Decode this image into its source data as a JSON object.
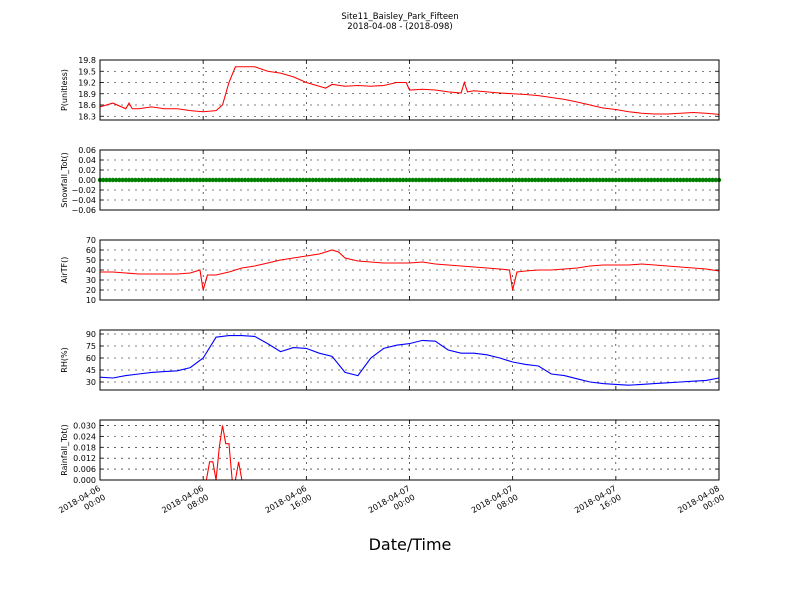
{
  "figure": {
    "title_line1": "Site11_Baisley_Park_Fifteen",
    "title_line2": "2018-04-08 - (2018-098)",
    "xlabel": "Date/Time"
  },
  "x_axis": {
    "range": [
      "2018-04-06 00:00",
      "2018-04-08 00:00"
    ],
    "ticks": [
      {
        "line1": "2018-04-06",
        "line2": "00:00",
        "at": "2018-04-06 00:00"
      },
      {
        "line1": "2018-04-06",
        "line2": "08:00",
        "at": "2018-04-06 08:00"
      },
      {
        "line1": "2018-04-06",
        "line2": "16:00",
        "at": "2018-04-06 16:00"
      },
      {
        "line1": "2018-04-07",
        "line2": "00:00",
        "at": "2018-04-07 00:00"
      },
      {
        "line1": "2018-04-07",
        "line2": "08:00",
        "at": "2018-04-07 08:00"
      },
      {
        "line1": "2018-04-07",
        "line2": "16:00",
        "at": "2018-04-07 16:00"
      },
      {
        "line1": "2018-04-08",
        "line2": "00:00",
        "at": "2018-04-08 00:00"
      }
    ]
  },
  "chart_data": [
    {
      "type": "line",
      "ylabel": "P(unitless)",
      "ylim": [
        18.2,
        19.8
      ],
      "yticks": [
        "18.3",
        "18.6",
        "18.9",
        "19.2",
        "19.5",
        "19.8"
      ],
      "grid": true,
      "series": [
        {
          "color": "#ff0000",
          "x": [
            "2018-04-06 00:00",
            "2018-04-06 01:00",
            "2018-04-06 02:00",
            "2018-04-06 02:15",
            "2018-04-06 02:30",
            "2018-04-06 03:00",
            "2018-04-06 04:00",
            "2018-04-06 05:00",
            "2018-04-06 06:00",
            "2018-04-06 07:00",
            "2018-04-06 08:00",
            "2018-04-06 09:00",
            "2018-04-06 09:30",
            "2018-04-06 10:00",
            "2018-04-06 10:30",
            "2018-04-06 11:00",
            "2018-04-06 12:00",
            "2018-04-06 13:00",
            "2018-04-06 14:00",
            "2018-04-06 15:00",
            "2018-04-06 16:00",
            "2018-04-06 17:00",
            "2018-04-06 17:30",
            "2018-04-06 18:00",
            "2018-04-06 19:00",
            "2018-04-06 20:00",
            "2018-04-06 21:00",
            "2018-04-06 22:00",
            "2018-04-06 23:00",
            "2018-04-06 23:45",
            "2018-04-07 00:00",
            "2018-04-07 01:00",
            "2018-04-07 02:00",
            "2018-04-07 03:00",
            "2018-04-07 04:00",
            "2018-04-07 04:15",
            "2018-04-07 04:30",
            "2018-04-07 05:00",
            "2018-04-07 06:00",
            "2018-04-07 07:00",
            "2018-04-07 08:00",
            "2018-04-07 09:00",
            "2018-04-07 10:00",
            "2018-04-07 11:00",
            "2018-04-07 12:00",
            "2018-04-07 13:00",
            "2018-04-07 14:00",
            "2018-04-07 15:00",
            "2018-04-07 16:00",
            "2018-04-07 17:00",
            "2018-04-07 18:00",
            "2018-04-07 19:00",
            "2018-04-07 20:00",
            "2018-04-07 21:00",
            "2018-04-07 22:00",
            "2018-04-07 23:00",
            "2018-04-08 00:00"
          ],
          "y": [
            18.55,
            18.65,
            18.5,
            18.65,
            18.5,
            18.5,
            18.55,
            18.5,
            18.5,
            18.45,
            18.42,
            18.45,
            18.6,
            19.2,
            19.62,
            19.62,
            19.62,
            19.5,
            19.45,
            19.35,
            19.2,
            19.1,
            19.05,
            19.15,
            19.1,
            19.12,
            19.1,
            19.12,
            19.2,
            19.2,
            19.0,
            19.02,
            19.0,
            18.95,
            18.92,
            19.2,
            18.95,
            18.98,
            18.95,
            18.92,
            18.9,
            18.88,
            18.85,
            18.8,
            18.75,
            18.68,
            18.6,
            18.52,
            18.48,
            18.42,
            18.38,
            18.36,
            18.36,
            18.38,
            18.4,
            18.38,
            18.35
          ]
        }
      ]
    },
    {
      "type": "scatter",
      "ylabel": "Snowfall_Tot()",
      "ylim": [
        -0.06,
        0.06
      ],
      "yticks": [
        "−0.06",
        "−0.04",
        "−0.02",
        "0.00",
        "0.02",
        "0.04",
        "0.06"
      ],
      "grid": true,
      "series": [
        {
          "color": "#008000",
          "constant_value": 0.0,
          "x_range": [
            "2018-04-06 00:00",
            "2018-04-08 00:00"
          ]
        }
      ]
    },
    {
      "type": "line",
      "ylabel": "AirTF()",
      "ylim": [
        10,
        70
      ],
      "yticks": [
        "10",
        "20",
        "30",
        "40",
        "50",
        "60",
        "70"
      ],
      "grid": true,
      "series": [
        {
          "color": "#ff0000",
          "x": [
            "2018-04-06 00:00",
            "2018-04-06 01:00",
            "2018-04-06 02:00",
            "2018-04-06 03:00",
            "2018-04-06 04:00",
            "2018-04-06 05:00",
            "2018-04-06 06:00",
            "2018-04-06 07:00",
            "2018-04-06 07:45",
            "2018-04-06 08:00",
            "2018-04-06 08:20",
            "2018-04-06 09:00",
            "2018-04-06 10:00",
            "2018-04-06 11:00",
            "2018-04-06 12:00",
            "2018-04-06 13:00",
            "2018-04-06 14:00",
            "2018-04-06 15:00",
            "2018-04-06 16:00",
            "2018-04-06 17:00",
            "2018-04-06 18:00",
            "2018-04-06 18:30",
            "2018-04-06 19:00",
            "2018-04-06 20:00",
            "2018-04-06 21:00",
            "2018-04-06 22:00",
            "2018-04-06 23:00",
            "2018-04-07 00:00",
            "2018-04-07 01:00",
            "2018-04-07 02:00",
            "2018-04-07 03:00",
            "2018-04-07 04:00",
            "2018-04-07 05:00",
            "2018-04-07 06:00",
            "2018-04-07 07:00",
            "2018-04-07 07:45",
            "2018-04-07 08:00",
            "2018-04-07 08:20",
            "2018-04-07 09:00",
            "2018-04-07 10:00",
            "2018-04-07 11:00",
            "2018-04-07 12:00",
            "2018-04-07 13:00",
            "2018-04-07 14:00",
            "2018-04-07 15:00",
            "2018-04-07 16:00",
            "2018-04-07 17:00",
            "2018-04-07 18:00",
            "2018-04-07 19:00",
            "2018-04-07 20:00",
            "2018-04-07 21:00",
            "2018-04-07 22:00",
            "2018-04-07 23:00",
            "2018-04-08 00:00"
          ],
          "y": [
            38,
            38,
            37,
            36,
            36,
            36,
            36,
            37,
            40,
            20,
            35,
            35,
            38,
            42,
            44,
            47,
            50,
            52,
            54,
            56,
            60,
            58,
            52,
            49,
            48,
            47,
            47,
            47,
            48,
            46,
            45,
            44,
            43,
            42,
            41,
            40,
            20,
            38,
            39,
            40,
            40,
            41,
            42,
            44,
            45,
            45,
            45,
            46,
            45,
            44,
            43,
            42,
            41,
            39
          ]
        }
      ]
    },
    {
      "type": "line",
      "ylabel": "RH(%)",
      "ylim": [
        20,
        95
      ],
      "yticks": [
        "30",
        "45",
        "60",
        "75",
        "90"
      ],
      "grid": true,
      "series": [
        {
          "color": "#0000ff",
          "x": [
            "2018-04-06 00:00",
            "2018-04-06 01:00",
            "2018-04-06 02:00",
            "2018-04-06 03:00",
            "2018-04-06 04:00",
            "2018-04-06 05:00",
            "2018-04-06 06:00",
            "2018-04-06 07:00",
            "2018-04-06 08:00",
            "2018-04-06 09:00",
            "2018-04-06 10:00",
            "2018-04-06 11:00",
            "2018-04-06 12:00",
            "2018-04-06 13:00",
            "2018-04-06 14:00",
            "2018-04-06 15:00",
            "2018-04-06 16:00",
            "2018-04-06 17:00",
            "2018-04-06 18:00",
            "2018-04-06 19:00",
            "2018-04-06 20:00",
            "2018-04-06 21:00",
            "2018-04-06 22:00",
            "2018-04-06 23:00",
            "2018-04-07 00:00",
            "2018-04-07 01:00",
            "2018-04-07 02:00",
            "2018-04-07 03:00",
            "2018-04-07 04:00",
            "2018-04-07 05:00",
            "2018-04-07 06:00",
            "2018-04-07 07:00",
            "2018-04-07 08:00",
            "2018-04-07 09:00",
            "2018-04-07 10:00",
            "2018-04-07 11:00",
            "2018-04-07 12:00",
            "2018-04-07 13:00",
            "2018-04-07 14:00",
            "2018-04-07 15:00",
            "2018-04-07 16:00",
            "2018-04-07 17:00",
            "2018-04-07 18:00",
            "2018-04-07 19:00",
            "2018-04-07 20:00",
            "2018-04-07 21:00",
            "2018-04-07 22:00",
            "2018-04-07 23:00",
            "2018-04-08 00:00"
          ],
          "y": [
            36,
            35,
            38,
            40,
            42,
            43,
            44,
            48,
            60,
            86,
            88,
            88,
            87,
            78,
            68,
            73,
            72,
            66,
            62,
            42,
            38,
            60,
            72,
            76,
            78,
            82,
            81,
            70,
            66,
            66,
            64,
            60,
            55,
            52,
            50,
            40,
            38,
            34,
            30,
            28,
            27,
            26,
            27,
            28,
            29,
            30,
            31,
            32,
            35
          ]
        }
      ]
    },
    {
      "type": "line",
      "ylabel": "Rainfall_Tot()",
      "ylim": [
        0.0,
        0.033
      ],
      "yticks": [
        "0.000",
        "0.006",
        "0.012",
        "0.018",
        "0.024",
        "0.030"
      ],
      "grid": true,
      "series": [
        {
          "color": "#ff0000",
          "x": [
            "2018-04-06 00:00",
            "2018-04-06 08:00",
            "2018-04-06 08:15",
            "2018-04-06 08:30",
            "2018-04-06 08:45",
            "2018-04-06 09:00",
            "2018-04-06 09:15",
            "2018-04-06 09:30",
            "2018-04-06 09:45",
            "2018-04-06 10:00",
            "2018-04-06 10:15",
            "2018-04-06 10:30",
            "2018-04-06 10:45",
            "2018-04-06 11:00",
            "2018-04-06 11:15",
            "2018-04-06 11:30",
            "2018-04-08 00:00"
          ],
          "y": [
            0,
            0,
            0,
            0.01,
            0.01,
            0,
            0.018,
            0.03,
            0.02,
            0.02,
            0,
            0,
            0.01,
            0,
            0,
            0,
            0
          ]
        }
      ]
    }
  ]
}
